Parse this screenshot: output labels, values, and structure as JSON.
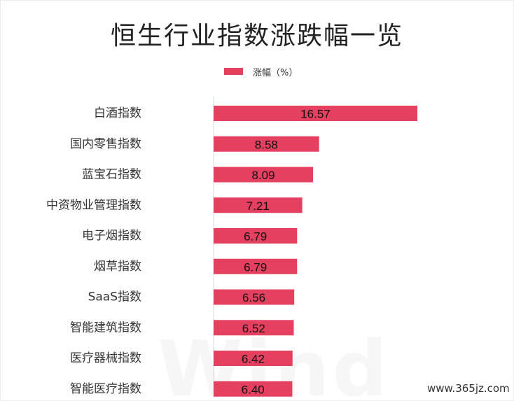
{
  "chart_data": {
    "type": "bar",
    "orientation": "horizontal",
    "title": "恒生行业指数涨跌幅一览",
    "categories": [
      "白酒指数",
      "国内零售指数",
      "蓝宝石指数",
      "中资物业管理指数",
      "电子烟指数",
      "烟草指数",
      "SaaS指数",
      "智能建筑指数",
      "医疗器械指数",
      "智能医疗指数"
    ],
    "series": [
      {
        "name": "涨幅（%）",
        "values": [
          16.57,
          8.58,
          8.09,
          7.21,
          6.79,
          6.79,
          6.56,
          6.52,
          6.42,
          6.4
        ],
        "labels": [
          "16.57",
          "8.58",
          "8.09",
          "7.21",
          "6.79",
          "6.79",
          "6.56",
          "6.52",
          "6.42",
          "6.40"
        ]
      }
    ],
    "xlim": [
      0,
      16.57
    ],
    "legend": "top-center",
    "grid": false,
    "color": "#e5405f"
  },
  "watermark": "Wind",
  "site_watermark": "www.365jz.com"
}
